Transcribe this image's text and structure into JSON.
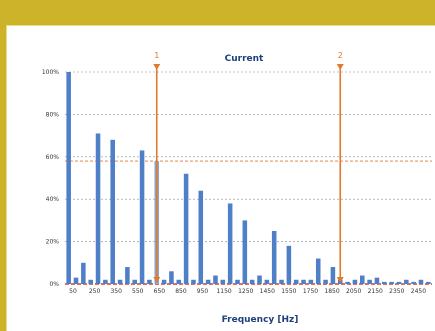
{
  "chart_data": {
    "type": "bar",
    "title": "Current",
    "xlabel": "Frequency [Hz]",
    "ylabel": "",
    "ylim": [
      0,
      100
    ],
    "y_ticks": [
      "0%",
      "20%",
      "40%",
      "60%",
      "80%",
      "100%"
    ],
    "x_tick_labels": [
      "50",
      "250",
      "350",
      "550",
      "650",
      "850",
      "950",
      "1150",
      "1250",
      "1450",
      "1550",
      "1750",
      "1850",
      "2050",
      "2150",
      "2350",
      "2450"
    ],
    "values": [
      100,
      3,
      10,
      2,
      71,
      2,
      68,
      2,
      8,
      2,
      63,
      2,
      58,
      2,
      6,
      2,
      52,
      2,
      44,
      2,
      4,
      2,
      38,
      2,
      30,
      2,
      4,
      2,
      25,
      2,
      18,
      2,
      2,
      2,
      12,
      2,
      8,
      2,
      1,
      2,
      4,
      2,
      3,
      1,
      1,
      1,
      2,
      1,
      2,
      1
    ],
    "highlight_index": 12,
    "threshold_line": 58,
    "cursors": [
      {
        "label": "1",
        "category_index": 12
      },
      {
        "label": "2",
        "category_index": 37
      }
    ],
    "colors": {
      "bar": "#4f7fc7",
      "bar_highlight": "#8ea7c9",
      "cursor": "#e07a2e",
      "threshold": "#e07a2e",
      "baseline": "#d9412b",
      "grid": "#8c8c8c"
    },
    "grid": true
  }
}
